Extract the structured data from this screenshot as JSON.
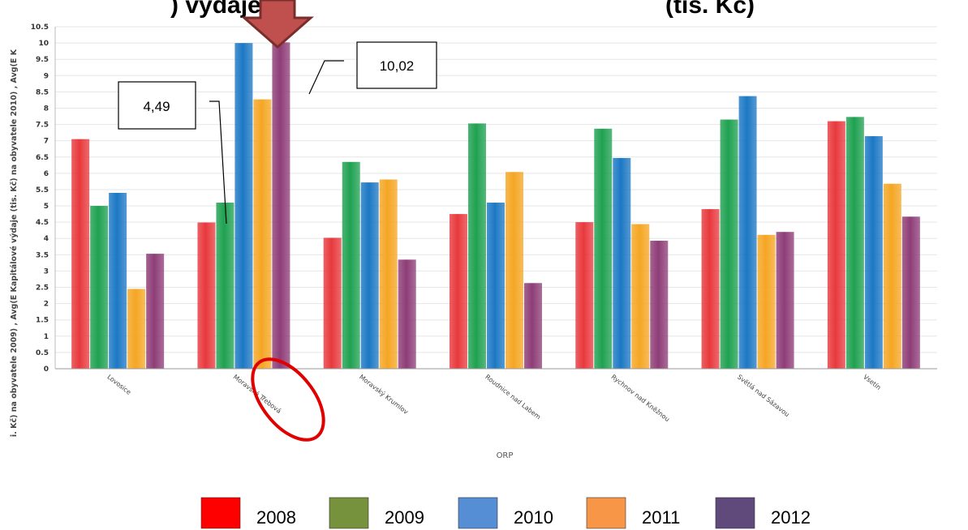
{
  "chart_data": {
    "type": "bar",
    "title_fragment": ") vydaje",
    "title_right": "(tis. Kč)",
    "xlabel": "ORP",
    "ylabel": "i. Kč) na obyvatele 2009) , Avg(E Kapitálové výdaje (tis. Kč) na obyvatele 2010) , Avg(E K",
    "ylim": [
      0,
      10.5
    ],
    "yticks": [
      "0",
      "0.5",
      "1",
      "1.5",
      "2",
      "2.5",
      "3",
      "3.5",
      "4",
      "4.5",
      "5",
      "5.5",
      "6",
      "6.5",
      "7",
      "7.5",
      "8",
      "8.5",
      "9",
      "9.5",
      "10",
      "10.5"
    ],
    "grid": true,
    "legend_position": "bottom",
    "categories": [
      "Lovosice",
      "Moravská Třebová",
      "Moravský Krumlov",
      "Roudnice nad Labem",
      "Rychnov nad Kněžnou",
      "Světlá nad Sázavou",
      "Vsetín"
    ],
    "series": [
      {
        "name": "2008",
        "color": "#e8393d",
        "values": [
          7.05,
          4.49,
          4.02,
          4.75,
          4.5,
          4.9,
          7.6
        ]
      },
      {
        "name": "2009",
        "color": "#1fa151",
        "values": [
          5.0,
          5.1,
          6.35,
          7.53,
          7.37,
          7.65,
          7.73
        ]
      },
      {
        "name": "2010",
        "color": "#1c78c4",
        "values": [
          5.4,
          10.0,
          5.72,
          5.1,
          6.47,
          8.37,
          7.14
        ]
      },
      {
        "name": "2011",
        "color": "#f5a623",
        "values": [
          2.45,
          8.27,
          5.81,
          6.04,
          4.44,
          4.11,
          5.68
        ]
      },
      {
        "name": "2012",
        "color": "#8e3d77",
        "values": [
          3.53,
          10.02,
          3.35,
          2.63,
          3.93,
          4.2,
          4.67
        ]
      }
    ],
    "legend": [
      {
        "label": "2008",
        "color": "#ff0000"
      },
      {
        "label": "2009",
        "color": "#76923c"
      },
      {
        "label": "2010",
        "color": "#558ed5"
      },
      {
        "label": "2011",
        "color": "#f79646"
      },
      {
        "label": "2012",
        "color": "#604a7b"
      }
    ],
    "annotations": {
      "callout_1": "4,49",
      "callout_2": "10,02",
      "arrow_color": "#c0504d",
      "highlight_color": "#e00000"
    }
  }
}
